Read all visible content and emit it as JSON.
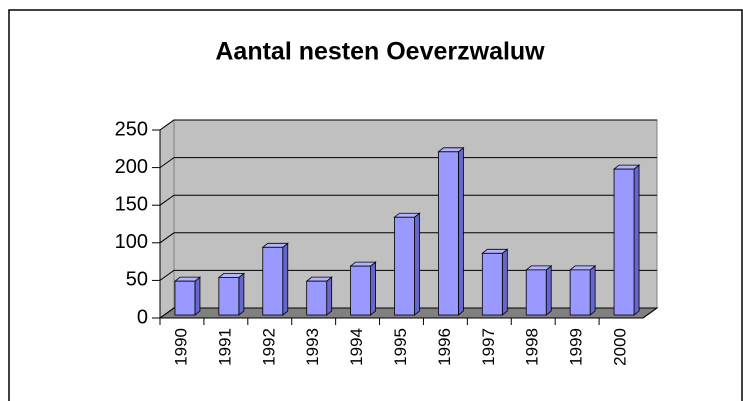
{
  "chart_data": {
    "type": "bar",
    "title": "Aantal nesten Oeverzwaluw",
    "categories": [
      "1990",
      "1991",
      "1992",
      "1993",
      "1994",
      "1995",
      "1996",
      "1997",
      "1998",
      "1999",
      "2000"
    ],
    "values": [
      45,
      50,
      90,
      45,
      65,
      130,
      217,
      82,
      60,
      60,
      194
    ],
    "color": "#9999ff",
    "ylim": [
      0,
      250
    ],
    "yticks": [
      0,
      50,
      100,
      150,
      200,
      250
    ],
    "grid": true
  }
}
